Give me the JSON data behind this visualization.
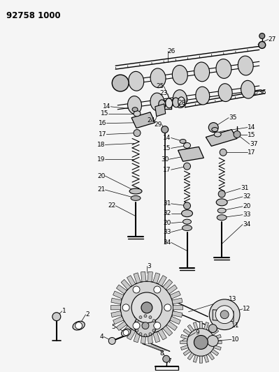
{
  "title": "92758 1000",
  "bg_color": "#f0f0f0",
  "fig_width": 3.99,
  "fig_height": 5.33,
  "dpi": 100
}
